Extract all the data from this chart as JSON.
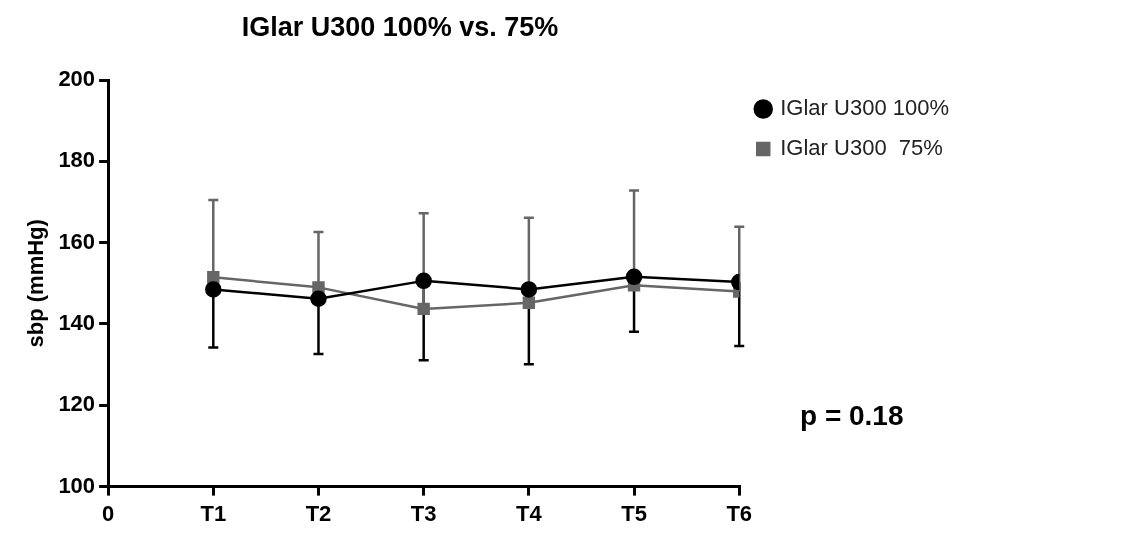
{
  "chart_data": {
    "type": "line",
    "title": "IGlar U300 100% vs. 75%",
    "ylabel": "sbp (mmHg)",
    "categories": [
      "0",
      "T1",
      "T2",
      "T3",
      "T4",
      "T5",
      "T6"
    ],
    "ylim": [
      100,
      200
    ],
    "yticks": [
      100,
      120,
      140,
      160,
      180,
      200
    ],
    "series": [
      {
        "name": "IGlar U300 100%",
        "color": "#000000",
        "marker": "circle",
        "values": [
          null,
          148.5,
          146.2,
          150.6,
          148.5,
          151.6,
          150.3
        ],
        "errors": [
          null,
          [
            134.2,
            148.5
          ],
          [
            132.6,
            146.2
          ],
          [
            131.1,
            150.6
          ],
          [
            130.1,
            148.5
          ],
          [
            138.1,
            151.6
          ],
          [
            134.6,
            150.3
          ]
        ]
      },
      {
        "name": "IGlar U300  75%",
        "color": "#666666",
        "marker": "square",
        "values": [
          null,
          151.5,
          149,
          143.7,
          145.2,
          149.5,
          148
        ],
        "errors": [
          null,
          [
            151.5,
            170.5
          ],
          [
            149,
            162.6
          ],
          [
            143.7,
            167.2
          ],
          [
            145.2,
            166.1
          ],
          [
            149.5,
            172.8
          ],
          [
            148,
            163.9
          ]
        ]
      }
    ],
    "legend": "top right",
    "grid": false,
    "line_style": "solid",
    "annotations": [
      "p = 0.18"
    ]
  }
}
